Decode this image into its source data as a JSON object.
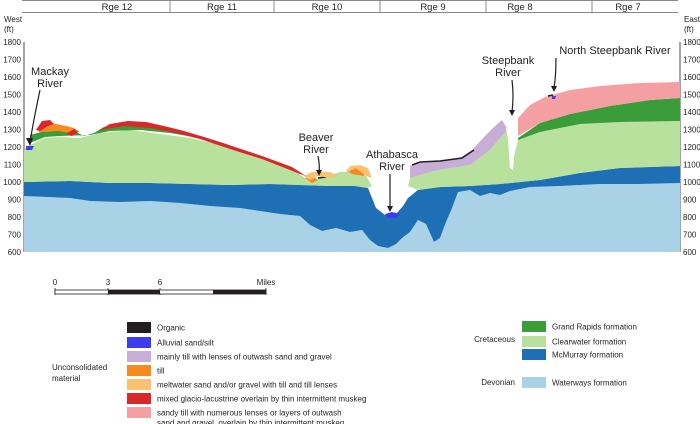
{
  "ranges": [
    "Rge 12",
    "Rge 11",
    "Rge 10",
    "Rge 9",
    "Rge 8",
    "Rge 7"
  ],
  "axes": {
    "left_title": [
      "West",
      "(ft)"
    ],
    "right_title": [
      "East",
      "(ft)"
    ],
    "ticks": [
      "1800",
      "1700",
      "1600",
      "1500",
      "1400",
      "1300",
      "1200",
      "1100",
      "1000",
      "900",
      "800",
      "700",
      "600"
    ]
  },
  "rivers": {
    "mackay": [
      "Mackay",
      "River"
    ],
    "beaver": [
      "Beaver",
      "River"
    ],
    "athabasca": [
      "Athabasca",
      "River"
    ],
    "steepbank": [
      "Steepbank",
      "River"
    ],
    "north_steepbank": "North Steepbank River"
  },
  "scale": {
    "ticks": [
      "0",
      "3",
      "6"
    ],
    "unit": "Miles"
  },
  "legend": {
    "unconsolidated_label": [
      "Unconsolidated",
      "material"
    ],
    "cretaceous_label": "Cretaceous",
    "devonian_label": "Devonian",
    "left_items": [
      {
        "color": "#231f20",
        "label": [
          "Organic"
        ]
      },
      {
        "color": "#3d3df0",
        "label": [
          "Alluvial sand/silt"
        ]
      },
      {
        "color": "#c7aed6",
        "label": [
          "mainly till with lenses of outwash sand and gravel"
        ]
      },
      {
        "color": "#f7891d",
        "label": [
          "till"
        ]
      },
      {
        "color": "#fbc173",
        "label": [
          "meltwater sand and/or gravel with till and till lenses"
        ]
      },
      {
        "color": "#d9272a",
        "label": [
          "mixed glacio-lacustrine overlain by thin intermittent muskeg"
        ]
      },
      {
        "color": "#f4a0a2",
        "label": [
          "sandy till with numerous lenses or layers of outwash",
          "sand and gravel, overlain by thin intermittent muskeg"
        ]
      }
    ],
    "right_items": [
      {
        "color": "#3a9d3a",
        "label": "Grand Rapids formation"
      },
      {
        "color": "#b7e19c",
        "label": "Clearwater formation"
      },
      {
        "color": "#1f6fb4",
        "label": "McMurray formation"
      },
      {
        "color": "#a9d2e6",
        "label": "Waterways formation"
      }
    ]
  }
}
